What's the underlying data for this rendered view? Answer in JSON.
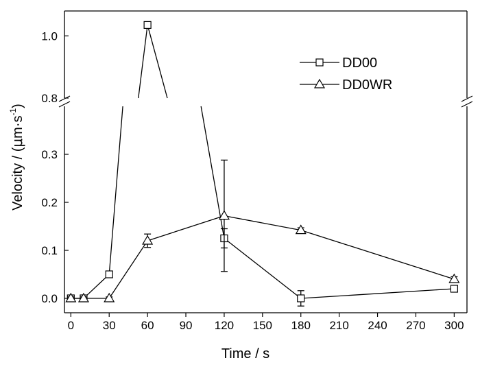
{
  "chart_data": {
    "type": "line",
    "xlabel": "Time / s",
    "ylabel_main": "Velocity / (",
    "ylabel_mu": "μ",
    "ylabel_unit": "m·s",
    "ylabel_exp": "-1",
    "ylabel_close": ")",
    "xlim": [
      -5,
      310
    ],
    "x_ticks": [
      "0",
      "30",
      "60",
      "90",
      "120",
      "150",
      "180",
      "210",
      "240",
      "270",
      "300"
    ],
    "ylim_lower": [
      -0.03,
      0.4
    ],
    "ylim_upper": [
      0.8,
      1.08
    ],
    "y_break": "broken axis between 0.4 and 0.8",
    "y_ticks_lower": [
      "0.0",
      "0.1",
      "0.2",
      "0.3"
    ],
    "y_ticks_upper": [
      "0.8",
      "1.0"
    ],
    "series": [
      {
        "name": "DD00",
        "marker": "square",
        "x": [
          0,
          10,
          30,
          60,
          120,
          180,
          300
        ],
        "y": [
          0.0,
          0.0,
          0.05,
          1.035,
          0.125,
          0.0,
          0.02
        ],
        "err": [
          0.003,
          0.003,
          0.003,
          0.006,
          0.02,
          0.016,
          0.004
        ]
      },
      {
        "name": "DD0WR",
        "marker": "triangle",
        "x": [
          0,
          10,
          30,
          60,
          120,
          180,
          300
        ],
        "y": [
          0.0,
          0.0,
          0.0,
          0.12,
          0.172,
          0.142,
          0.04
        ],
        "err": [
          0.003,
          0.003,
          0.003,
          0.014,
          0.116,
          0.005,
          0.005
        ]
      }
    ],
    "legend_position": "top-right",
    "grid": false
  }
}
